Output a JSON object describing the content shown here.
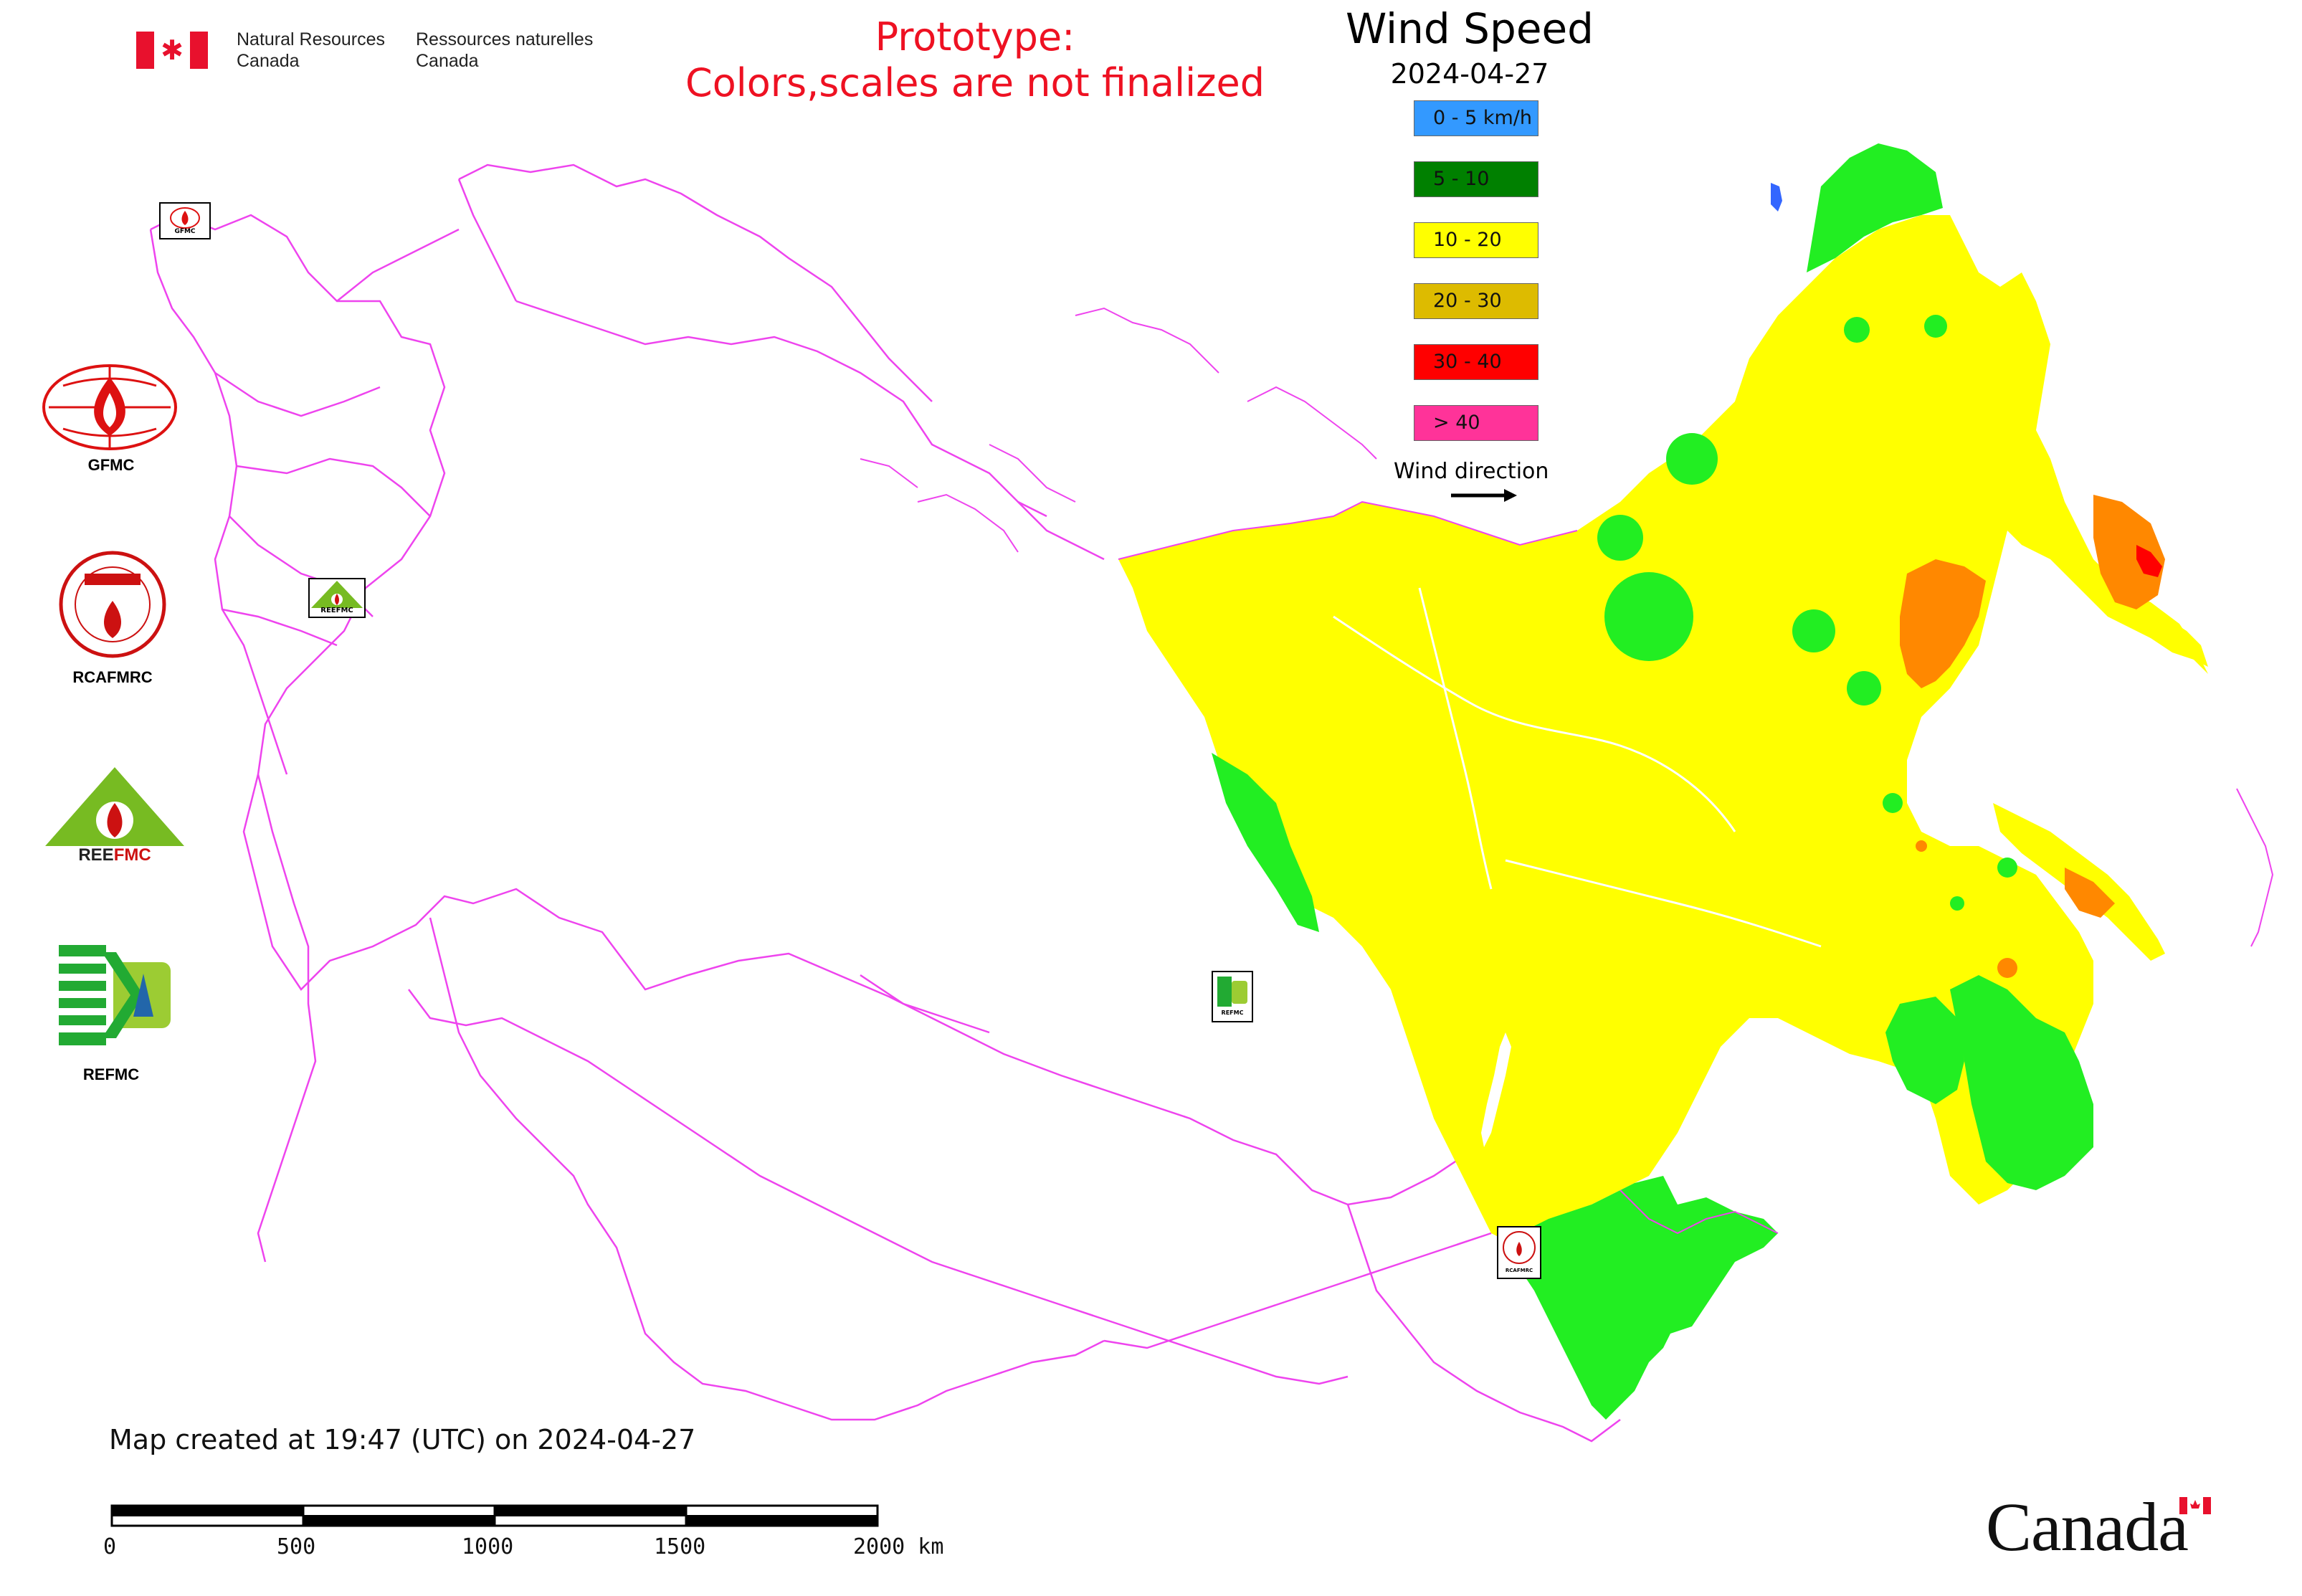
{
  "agency": {
    "name_en_1": "Natural Resources",
    "name_en_2": "Canada",
    "name_fr_1": "Ressources naturelles",
    "name_fr_2": "Canada"
  },
  "notice": {
    "line1": "Prototype:",
    "line2": "Colors,scales are not finalized"
  },
  "legend": {
    "title": "Wind Speed",
    "date": "2024-04-27",
    "classes": [
      {
        "label": "0 - 5 km/h",
        "color": "#3399ff"
      },
      {
        "label": "5 - 10",
        "color": "#008000"
      },
      {
        "label": "10 - 20",
        "color": "#ffff00"
      },
      {
        "label": "20 - 30",
        "color": "#ddbb00"
      },
      {
        "label": "30 - 40",
        "color": "#ff0000"
      },
      {
        "label": "> 40",
        "color": "#ff3399"
      }
    ],
    "wind_direction_label": "Wind direction"
  },
  "logos": [
    {
      "label": "GFMC",
      "icon": "gfmc-logo"
    },
    {
      "label": "RCAFMRC",
      "icon": "rcafmrc-logo"
    },
    {
      "label": "REEFMC",
      "icon": "reefmc-logo"
    },
    {
      "label": "REFMC",
      "icon": "refmc-logo"
    }
  ],
  "mini_logo_text": {
    "gfmc": "GFMC",
    "reefmc": "REEFMC",
    "refmc": "REFMC",
    "rcafmrc": "RCAFMRC"
  },
  "footer": {
    "created": "Map created at 19:47 (UTC) on 2024-04-27",
    "scale_ticks": [
      "0",
      "500",
      "1000",
      "1500",
      "2000 km"
    ],
    "wordmark": "Canada"
  },
  "colors": {
    "border": "#ee44ee",
    "yellow": "#ffff00",
    "green": "#22ee22",
    "orange": "#ff8800",
    "red": "#ff0000",
    "blue": "#3366ff"
  }
}
